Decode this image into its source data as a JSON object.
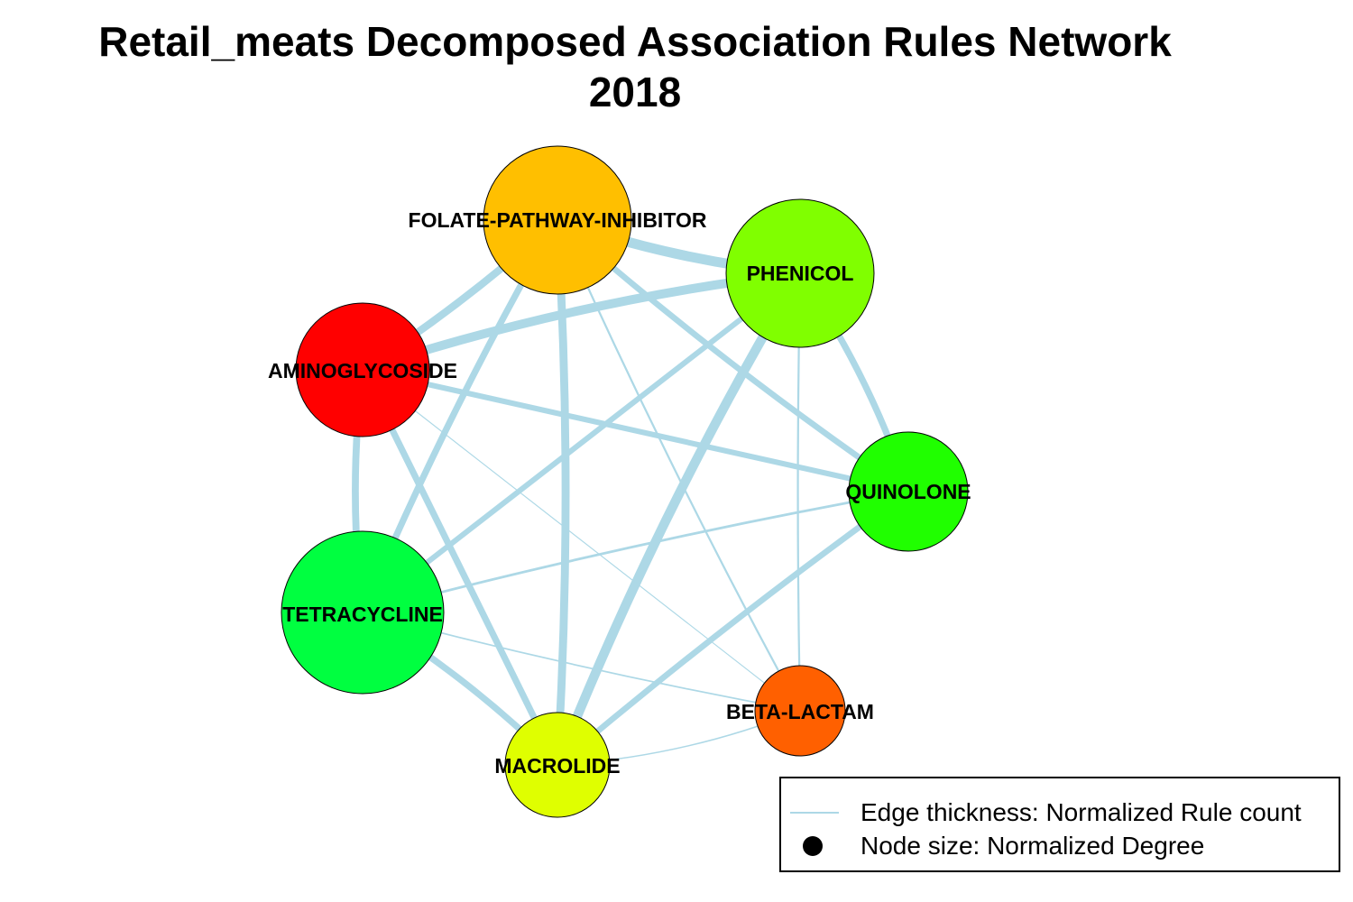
{
  "title": {
    "line1": "Retail_meats Decomposed Association Rules Network",
    "line2": "2018"
  },
  "edge_color": "#add8e6",
  "node_border_color": "#000000",
  "nodes": [
    {
      "id": "folate",
      "label": "FOLATE-PATHWAY-INHIBITOR",
      "color": "#ffbf00",
      "normalized_degree": 0.9
    },
    {
      "id": "phenicol",
      "label": "PHENICOL",
      "color": "#80ff00",
      "normalized_degree": 0.9
    },
    {
      "id": "amino",
      "label": "AMINOGLYCOSIDE",
      "color": "#ff0000",
      "normalized_degree": 0.8
    },
    {
      "id": "quino",
      "label": "QUINOLONE",
      "color": "#20ff00",
      "normalized_degree": 0.7
    },
    {
      "id": "tetra",
      "label": "TETRACYCLINE",
      "color": "#00ff40",
      "normalized_degree": 1.0
    },
    {
      "id": "beta",
      "label": "BETA-LACTAM",
      "color": "#ff6000",
      "normalized_degree": 0.5
    },
    {
      "id": "macro",
      "label": "MACROLIDE",
      "color": "#dfff00",
      "normalized_degree": 0.6
    }
  ],
  "edges": [
    {
      "source": "folate",
      "target": "phenicol",
      "weight": 0.95
    },
    {
      "source": "folate",
      "target": "amino",
      "weight": 0.7
    },
    {
      "source": "folate",
      "target": "tetra",
      "weight": 0.6
    },
    {
      "source": "folate",
      "target": "macro",
      "weight": 0.75
    },
    {
      "source": "folate",
      "target": "quino",
      "weight": 0.55
    },
    {
      "source": "folate",
      "target": "beta",
      "weight": 0.15
    },
    {
      "source": "phenicol",
      "target": "amino",
      "weight": 0.85
    },
    {
      "source": "phenicol",
      "target": "tetra",
      "weight": 0.5
    },
    {
      "source": "phenicol",
      "target": "macro",
      "weight": 0.9
    },
    {
      "source": "phenicol",
      "target": "quino",
      "weight": 0.6
    },
    {
      "source": "phenicol",
      "target": "beta",
      "weight": 0.15
    },
    {
      "source": "amino",
      "target": "quino",
      "weight": 0.5
    },
    {
      "source": "amino",
      "target": "tetra",
      "weight": 0.65
    },
    {
      "source": "amino",
      "target": "macro",
      "weight": 0.6
    },
    {
      "source": "amino",
      "target": "beta",
      "weight": 0.05
    },
    {
      "source": "quino",
      "target": "tetra",
      "weight": 0.2
    },
    {
      "source": "quino",
      "target": "macro",
      "weight": 0.55
    },
    {
      "source": "tetra",
      "target": "macro",
      "weight": 0.6
    },
    {
      "source": "tetra",
      "target": "beta",
      "weight": 0.1
    },
    {
      "source": "macro",
      "target": "beta",
      "weight": 0.08
    }
  ],
  "legend": {
    "edge_label": "Edge thickness: Normalized Rule count",
    "node_label": "Node size: Normalized Degree"
  }
}
